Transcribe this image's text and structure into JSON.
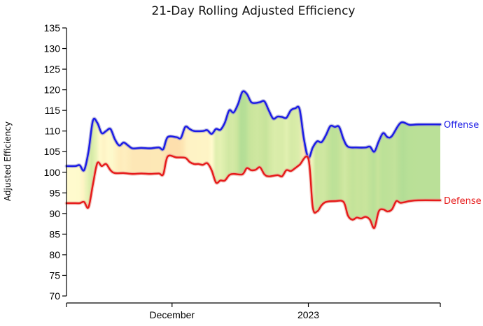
{
  "chart_data": {
    "type": "area",
    "title": "21-Day Rolling Adjusted Efficiency",
    "xlabel": "",
    "ylabel": "Adjusted Efficiency",
    "ylim": [
      70,
      135
    ],
    "yticks": [
      70,
      75,
      80,
      85,
      90,
      95,
      100,
      105,
      110,
      115,
      120,
      125,
      130,
      135
    ],
    "x_tick_labels": [
      "",
      "December",
      "2023",
      ""
    ],
    "grid": false,
    "legend": "none (series labeled at right end of lines)",
    "x_domain": [
      "2022-11-07",
      "2023-01-31"
    ],
    "x_ticks": [
      "2022-11-07",
      "2022-12-01",
      "2023-01-01",
      "2023-01-31"
    ],
    "series": [
      {
        "name": "Offense",
        "color": "#1a1ae6",
        "points": [
          [
            "2022-11-07",
            101.5
          ],
          [
            "2022-11-09",
            101.5
          ],
          [
            "2022-11-10",
            101.7
          ],
          [
            "2022-11-11",
            100.5
          ],
          [
            "2022-11-12",
            105.0
          ],
          [
            "2022-11-13",
            112.5
          ],
          [
            "2022-11-14",
            112.0
          ],
          [
            "2022-11-15",
            109.5
          ],
          [
            "2022-11-16",
            110.0
          ],
          [
            "2022-11-17",
            110.5
          ],
          [
            "2022-11-18",
            108.0
          ],
          [
            "2022-11-19",
            106.5
          ],
          [
            "2022-11-20",
            107.2
          ],
          [
            "2022-11-21",
            106.5
          ],
          [
            "2022-11-22",
            105.8
          ],
          [
            "2022-11-24",
            105.9
          ],
          [
            "2022-11-26",
            105.8
          ],
          [
            "2022-11-28",
            106.0
          ],
          [
            "2022-11-29",
            105.6
          ],
          [
            "2022-11-30",
            108.5
          ],
          [
            "2022-12-02",
            108.5
          ],
          [
            "2022-12-03",
            108.3
          ],
          [
            "2022-12-04",
            111.0
          ],
          [
            "2022-12-05",
            110.5
          ],
          [
            "2022-12-06",
            110.0
          ],
          [
            "2022-12-08",
            110.0
          ],
          [
            "2022-12-09",
            110.2
          ],
          [
            "2022-12-10",
            109.3
          ],
          [
            "2022-12-11",
            110.5
          ],
          [
            "2022-12-12",
            110.3
          ],
          [
            "2022-12-13",
            112.0
          ],
          [
            "2022-12-14",
            115.0
          ],
          [
            "2022-12-15",
            114.5
          ],
          [
            "2022-12-16",
            116.5
          ],
          [
            "2022-12-17",
            119.5
          ],
          [
            "2022-12-18",
            119.0
          ],
          [
            "2022-12-19",
            117.0
          ],
          [
            "2022-12-20",
            116.8
          ],
          [
            "2022-12-21",
            117.0
          ],
          [
            "2022-12-22",
            117.2
          ],
          [
            "2022-12-23",
            115.0
          ],
          [
            "2022-12-24",
            113.0
          ],
          [
            "2022-12-25",
            113.5
          ],
          [
            "2022-12-26",
            113.4
          ],
          [
            "2022-12-27",
            113.2
          ],
          [
            "2022-12-28",
            115.0
          ],
          [
            "2022-12-29",
            115.5
          ],
          [
            "2022-12-30",
            115.3
          ],
          [
            "2022-12-31",
            108.0
          ],
          [
            "2023-01-01",
            103.5
          ],
          [
            "2023-01-02",
            106.0
          ],
          [
            "2023-01-03",
            107.5
          ],
          [
            "2023-01-04",
            107.3
          ],
          [
            "2023-01-05",
            109.0
          ],
          [
            "2023-01-06",
            111.2
          ],
          [
            "2023-01-07",
            111.0
          ],
          [
            "2023-01-08",
            111.0
          ],
          [
            "2023-01-09",
            108.0
          ],
          [
            "2023-01-10",
            106.2
          ],
          [
            "2023-01-12",
            106.0
          ],
          [
            "2023-01-14",
            106.0
          ],
          [
            "2023-01-15",
            106.2
          ],
          [
            "2023-01-16",
            105.0
          ],
          [
            "2023-01-17",
            107.5
          ],
          [
            "2023-01-18",
            109.5
          ],
          [
            "2023-01-19",
            108.5
          ],
          [
            "2023-01-20",
            108.8
          ],
          [
            "2023-01-22",
            112.0
          ],
          [
            "2023-01-24",
            111.5
          ],
          [
            "2023-01-26",
            111.6
          ],
          [
            "2023-01-31",
            111.6
          ]
        ]
      },
      {
        "name": "Defense",
        "color": "#e61a1a",
        "points": [
          [
            "2022-11-07",
            92.5
          ],
          [
            "2022-11-09",
            92.5
          ],
          [
            "2022-11-10",
            92.5
          ],
          [
            "2022-11-11",
            92.8
          ],
          [
            "2022-11-12",
            91.5
          ],
          [
            "2022-11-13",
            97.0
          ],
          [
            "2022-11-14",
            102.2
          ],
          [
            "2022-11-15",
            101.5
          ],
          [
            "2022-11-16",
            102.0
          ],
          [
            "2022-11-17",
            100.5
          ],
          [
            "2022-11-18",
            99.8
          ],
          [
            "2022-11-20",
            99.8
          ],
          [
            "2022-11-22",
            99.6
          ],
          [
            "2022-11-24",
            99.7
          ],
          [
            "2022-11-26",
            99.6
          ],
          [
            "2022-11-28",
            99.7
          ],
          [
            "2022-11-29",
            99.5
          ],
          [
            "2022-11-30",
            103.8
          ],
          [
            "2022-12-02",
            103.6
          ],
          [
            "2022-12-04",
            103.5
          ],
          [
            "2022-12-05",
            102.5
          ],
          [
            "2022-12-06",
            102.0
          ],
          [
            "2022-12-07",
            102.0
          ],
          [
            "2022-12-08",
            101.8
          ],
          [
            "2022-12-09",
            102.2
          ],
          [
            "2022-12-10",
            100.5
          ],
          [
            "2022-12-11",
            97.5
          ],
          [
            "2022-12-12",
            98.0
          ],
          [
            "2022-12-13",
            98.0
          ],
          [
            "2022-12-14",
            99.3
          ],
          [
            "2022-12-15",
            99.6
          ],
          [
            "2022-12-17",
            99.5
          ],
          [
            "2022-12-18",
            101.0
          ],
          [
            "2022-12-19",
            100.5
          ],
          [
            "2022-12-20",
            100.6
          ],
          [
            "2022-12-21",
            101.2
          ],
          [
            "2022-12-22",
            99.5
          ],
          [
            "2022-12-23",
            99.0
          ],
          [
            "2022-12-25",
            99.3
          ],
          [
            "2022-12-26",
            99.0
          ],
          [
            "2022-12-27",
            100.5
          ],
          [
            "2022-12-28",
            100.3
          ],
          [
            "2022-12-29",
            101.0
          ],
          [
            "2022-12-30",
            101.8
          ],
          [
            "2023-01-01",
            103.3
          ],
          [
            "2023-01-02",
            91.5
          ],
          [
            "2023-01-03",
            90.5
          ],
          [
            "2023-01-04",
            92.0
          ],
          [
            "2023-01-05",
            92.8
          ],
          [
            "2023-01-07",
            93.0
          ],
          [
            "2023-01-09",
            92.8
          ],
          [
            "2023-01-10",
            89.5
          ],
          [
            "2023-01-11",
            88.5
          ],
          [
            "2023-01-12",
            89.0
          ],
          [
            "2023-01-13",
            88.8
          ],
          [
            "2023-01-14",
            89.2
          ],
          [
            "2023-01-15",
            88.5
          ],
          [
            "2023-01-16",
            86.5
          ],
          [
            "2023-01-17",
            90.5
          ],
          [
            "2023-01-18",
            91.0
          ],
          [
            "2023-01-19",
            90.5
          ],
          [
            "2023-01-20",
            91.0
          ],
          [
            "2023-01-21",
            93.0
          ],
          [
            "2023-01-22",
            92.6
          ],
          [
            "2023-01-24",
            93.0
          ],
          [
            "2023-01-26",
            93.2
          ],
          [
            "2023-01-31",
            93.2
          ]
        ]
      }
    ]
  }
}
